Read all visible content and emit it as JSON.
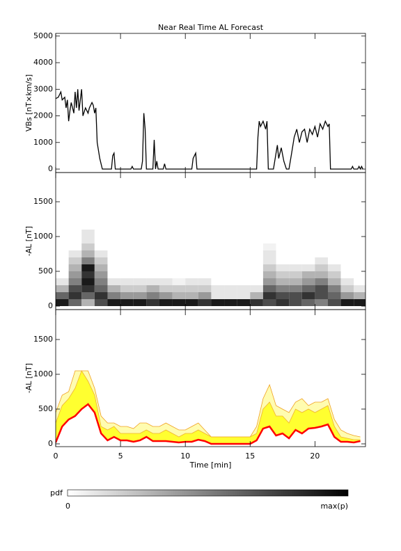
{
  "chart_data": [
    {
      "type": "line",
      "title": "Near Real Time AL Forecast",
      "ylabel": "VBs [nT×km/s]",
      "color": "#000000",
      "xlim": [
        0,
        23.9
      ],
      "xticks": [
        0,
        5,
        10,
        15,
        20
      ],
      "ylim": [
        -130,
        5100
      ],
      "yticks": [
        0,
        1000,
        2000,
        3000,
        4000,
        5000
      ],
      "x": [
        0,
        0.2,
        0.4,
        0.5,
        0.7,
        0.8,
        0.9,
        1.0,
        1.1,
        1.2,
        1.4,
        1.5,
        1.6,
        1.7,
        1.8,
        2.0,
        2.1,
        2.3,
        2.5,
        2.6,
        2.8,
        2.9,
        3.0,
        3.1,
        3.2,
        3.4,
        3.6,
        4.3,
        4.4,
        4.5,
        4.6,
        5.8,
        5.9,
        6.0,
        6.6,
        6.7,
        6.8,
        6.9,
        7.0,
        7.5,
        7.6,
        7.7,
        7.8,
        7.9,
        8.3,
        8.4,
        8.5,
        10.5,
        10.6,
        10.8,
        10.9,
        15.5,
        15.6,
        15.7,
        15.8,
        16.0,
        16.2,
        16.3,
        16.4,
        16.8,
        17.0,
        17.1,
        17.2,
        17.4,
        17.6,
        17.8,
        18.0,
        18.2,
        18.4,
        18.6,
        18.8,
        19.0,
        19.2,
        19.4,
        19.6,
        19.8,
        20.0,
        20.2,
        20.4,
        20.6,
        20.8,
        21.0,
        21.1,
        21.2,
        22.8,
        22.9,
        23.0,
        23.3,
        23.4,
        23.5,
        23.6,
        23.7
      ],
      "y": [
        2650,
        2700,
        2900,
        2600,
        2700,
        2300,
        2600,
        1800,
        2200,
        2500,
        2100,
        2900,
        2300,
        3000,
        2200,
        3000,
        2000,
        2300,
        2100,
        2300,
        2500,
        2400,
        2100,
        2300,
        1000,
        400,
        0,
        0,
        500,
        600,
        0,
        0,
        100,
        0,
        0,
        300,
        2100,
        1500,
        0,
        0,
        1100,
        0,
        300,
        0,
        0,
        200,
        0,
        0,
        400,
        600,
        0,
        0,
        1200,
        1800,
        1600,
        1800,
        1500,
        1800,
        0,
        0,
        600,
        900,
        400,
        800,
        300,
        0,
        0,
        600,
        1200,
        1500,
        1000,
        1400,
        1500,
        1000,
        1500,
        1300,
        1600,
        1200,
        1700,
        1500,
        1800,
        1600,
        1700,
        0,
        0,
        100,
        0,
        0,
        100,
        0,
        100,
        0
      ]
    },
    {
      "type": "heatmap",
      "ylabel": "-AL [nT]",
      "xlim": [
        0,
        23.9
      ],
      "xticks": [
        0,
        5,
        10,
        15,
        20
      ],
      "ylim": [
        -50,
        1920
      ],
      "yticks": [
        0,
        500,
        1000,
        1500
      ],
      "x_bins": [
        0,
        1,
        2,
        3,
        4,
        5,
        6,
        7,
        8,
        9,
        10,
        11,
        12,
        13,
        14,
        15,
        16,
        17,
        18,
        19,
        20,
        21,
        22,
        23,
        24
      ],
      "y_bins": [
        0,
        100,
        200,
        300,
        400,
        500,
        600,
        700,
        800,
        900,
        1000,
        1100
      ],
      "z": [
        [
          0.9,
          0.6,
          0.3,
          0.1,
          0,
          0,
          0,
          0,
          0,
          0,
          0
        ],
        [
          0.6,
          0.8,
          0.7,
          0.5,
          0.4,
          0.3,
          0.2,
          0.1,
          0,
          0,
          0
        ],
        [
          0.3,
          0.6,
          0.8,
          0.9,
          0.8,
          0.9,
          0.5,
          0.3,
          0.2,
          0.1,
          0.1
        ],
        [
          0.7,
          0.8,
          0.6,
          0.5,
          0.4,
          0.3,
          0.2,
          0.1,
          0,
          0,
          0
        ],
        [
          0.9,
          0.5,
          0.3,
          0.1,
          0,
          0,
          0,
          0,
          0,
          0,
          0
        ],
        [
          0.9,
          0.4,
          0.2,
          0.1,
          0,
          0,
          0,
          0,
          0,
          0,
          0
        ],
        [
          0.9,
          0.4,
          0.2,
          0.1,
          0,
          0,
          0,
          0,
          0,
          0,
          0
        ],
        [
          0.8,
          0.5,
          0.3,
          0.1,
          0,
          0,
          0,
          0,
          0,
          0,
          0
        ],
        [
          0.9,
          0.4,
          0.2,
          0.1,
          0,
          0,
          0,
          0,
          0,
          0,
          0
        ],
        [
          0.9,
          0.3,
          0.2,
          0.05,
          0,
          0,
          0,
          0,
          0,
          0,
          0
        ],
        [
          0.9,
          0.3,
          0.2,
          0.1,
          0,
          0,
          0,
          0,
          0,
          0,
          0
        ],
        [
          0.8,
          0.4,
          0.2,
          0.1,
          0,
          0,
          0,
          0,
          0,
          0,
          0
        ],
        [
          0.9,
          0.1,
          0.1,
          0,
          0,
          0,
          0,
          0,
          0,
          0,
          0
        ],
        [
          0.9,
          0.1,
          0.1,
          0,
          0,
          0,
          0,
          0,
          0,
          0,
          0
        ],
        [
          0.9,
          0.1,
          0.1,
          0,
          0,
          0,
          0,
          0,
          0,
          0,
          0
        ],
        [
          0.8,
          0.3,
          0.1,
          0,
          0,
          0,
          0,
          0,
          0,
          0,
          0
        ],
        [
          0.7,
          0.8,
          0.6,
          0.4,
          0.3,
          0.2,
          0.1,
          0.1,
          0.05,
          0,
          0
        ],
        [
          0.8,
          0.7,
          0.5,
          0.3,
          0.2,
          0.1,
          0,
          0,
          0,
          0,
          0
        ],
        [
          0.7,
          0.7,
          0.5,
          0.3,
          0.2,
          0.1,
          0,
          0,
          0,
          0,
          0
        ],
        [
          0.6,
          0.8,
          0.6,
          0.4,
          0.3,
          0.1,
          0,
          0,
          0,
          0,
          0
        ],
        [
          0.5,
          0.7,
          0.7,
          0.5,
          0.3,
          0.2,
          0.1,
          0,
          0,
          0,
          0
        ],
        [
          0.7,
          0.6,
          0.5,
          0.3,
          0.2,
          0.1,
          0,
          0,
          0,
          0,
          0
        ],
        [
          0.9,
          0.4,
          0.2,
          0.1,
          0,
          0,
          0,
          0,
          0,
          0,
          0
        ],
        [
          0.9,
          0.3,
          0.1,
          0,
          0,
          0,
          0,
          0,
          0,
          0,
          0
        ]
      ],
      "colorbar": {
        "label": "pdf",
        "min_label": "0",
        "max_label": "max(p)",
        "colors": [
          "#ffffff",
          "#000000"
        ]
      }
    },
    {
      "type": "band",
      "ylabel": "-AL [nT]",
      "xlabel": "Time [min]",
      "xlim": [
        0,
        23.9
      ],
      "xticks": [
        0,
        5,
        10,
        15,
        20
      ],
      "ylim": [
        -40,
        1930
      ],
      "yticks": [
        0,
        500,
        1000,
        1500
      ],
      "x": [
        0,
        0.5,
        1,
        1.5,
        2,
        2.5,
        3,
        3.5,
        4,
        4.5,
        5,
        5.5,
        6,
        6.5,
        7,
        7.5,
        8,
        8.5,
        9,
        9.5,
        10,
        10.5,
        11,
        11.5,
        12,
        12.5,
        13,
        13.5,
        14,
        14.5,
        15,
        15.5,
        16,
        16.5,
        17,
        17.5,
        18,
        18.5,
        19,
        19.5,
        20,
        20.5,
        21,
        21.5,
        22,
        22.5,
        23,
        23.5
      ],
      "series": [
        {
          "color": "#f0a020",
          "fill": "#fffcb0",
          "values": [
            450,
            700,
            750,
            1050,
            1050,
            1050,
            800,
            400,
            300,
            300,
            250,
            250,
            220,
            300,
            300,
            250,
            250,
            300,
            250,
            200,
            200,
            250,
            300,
            200,
            100,
            100,
            100,
            100,
            100,
            100,
            100,
            250,
            650,
            850,
            550,
            500,
            450,
            600,
            650,
            550,
            600,
            600,
            650,
            350,
            200,
            150,
            120,
            100
          ]
        },
        {
          "color": "#ffff30",
          "values": [
            300,
            550,
            650,
            800,
            1050,
            900,
            700,
            250,
            200,
            250,
            150,
            150,
            150,
            150,
            200,
            150,
            150,
            200,
            150,
            100,
            150,
            150,
            200,
            150,
            100,
            100,
            100,
            100,
            100,
            100,
            100,
            150,
            500,
            600,
            400,
            400,
            300,
            500,
            450,
            500,
            450,
            500,
            550,
            250,
            100,
            80,
            60,
            60
          ]
        },
        {
          "color": "#ff0000",
          "values": [
            20,
            250,
            350,
            400,
            500,
            570,
            450,
            150,
            50,
            100,
            50,
            50,
            30,
            50,
            100,
            40,
            40,
            40,
            30,
            20,
            30,
            30,
            60,
            40,
            0,
            0,
            0,
            0,
            0,
            0,
            0,
            50,
            220,
            250,
            120,
            150,
            80,
            200,
            150,
            220,
            230,
            250,
            280,
            100,
            30,
            30,
            20,
            40
          ]
        }
      ]
    }
  ]
}
